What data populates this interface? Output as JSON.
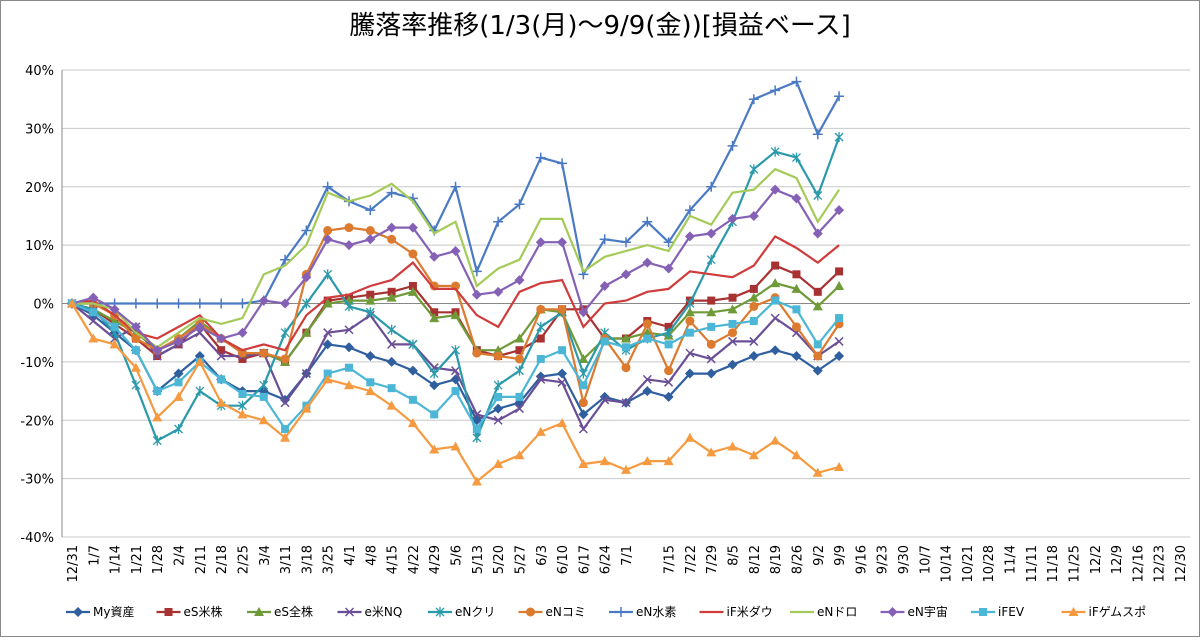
{
  "chart_data": {
    "type": "line",
    "title": "騰落率推移(1/3(月)～9/9(金))[損益ベース]",
    "categories": [
      "12/31",
      "1/7",
      "1/14",
      "1/21",
      "1/28",
      "2/4",
      "2/11",
      "2/18",
      "2/25",
      "3/4",
      "3/11",
      "3/18",
      "3/25",
      "4/1",
      "4/8",
      "4/15",
      "4/22",
      "4/29",
      "5/6",
      "5/13",
      "5/20",
      "5/27",
      "6/3",
      "6/10",
      "6/17",
      "6/24",
      "7/1",
      null,
      "7/15",
      "7/22",
      "7/29",
      "8/5",
      "8/12",
      "8/19",
      "8/26",
      "9/2",
      "9/9",
      "9/16",
      "9/23",
      "9/30",
      "10/7",
      "10/14",
      "10/21",
      "10/28",
      "11/4",
      "11/11",
      "11/18",
      "11/25",
      "12/2",
      "12/9",
      "12/16",
      "12/23",
      "12/30"
    ],
    "ylim": [
      -40,
      40
    ],
    "yticks": [
      {
        "value": -40,
        "label": "-40%"
      },
      {
        "value": -30,
        "label": "-30%"
      },
      {
        "value": -20,
        "label": "-20%"
      },
      {
        "value": -10,
        "label": "-10%"
      },
      {
        "value": 0,
        "label": "0%"
      },
      {
        "value": 10,
        "label": "10%"
      },
      {
        "value": 20,
        "label": "20%"
      },
      {
        "value": 30,
        "label": "30%"
      },
      {
        "value": 40,
        "label": "40%"
      }
    ],
    "grid": true,
    "legend": "bottom",
    "series": [
      {
        "name": "My資産",
        "color": "#2f5f9e",
        "marker": "diamond",
        "values": [
          0,
          -2,
          -5,
          -8,
          -15,
          -12,
          -9,
          -13,
          -15,
          -15,
          -16.5,
          -12,
          -7,
          -7.5,
          -9,
          -10,
          -11.5,
          -14,
          -13,
          -20,
          -18,
          -17,
          -12.5,
          -12,
          -19,
          -16,
          -17,
          -15,
          -16,
          -12,
          -12,
          -10.5,
          -9,
          -8,
          -9,
          -11.5,
          -9,
          null,
          null,
          null,
          null,
          null,
          null,
          null,
          null,
          null,
          null,
          null,
          null,
          null,
          null,
          null,
          null
        ]
      },
      {
        "name": "eS米株",
        "color": "#a83232",
        "marker": "square",
        "values": [
          0,
          -1,
          -3.5,
          -6,
          -9,
          -7,
          -3.5,
          -8,
          -9.5,
          -8.5,
          -10,
          -5,
          0.5,
          1,
          1.5,
          2,
          3,
          -1.5,
          -1.5,
          -8,
          -9,
          -8,
          -6,
          -1,
          -1,
          -6,
          -6,
          -3,
          -4,
          0.5,
          0.5,
          1,
          2.5,
          6.5,
          5,
          2,
          5.5,
          null,
          null,
          null,
          null,
          null,
          null,
          null,
          null,
          null,
          null,
          null,
          null,
          null,
          null,
          null,
          null
        ]
      },
      {
        "name": "eS全株",
        "color": "#6f9a38",
        "marker": "triangle",
        "values": [
          0,
          -1,
          -3,
          -5,
          -8,
          -6,
          -3,
          -6,
          -8.5,
          -8.5,
          -10,
          -5,
          0,
          0.5,
          0.5,
          1,
          2,
          -2.5,
          -2,
          -8,
          -8,
          -6,
          -1,
          -1.5,
          -9.5,
          -6,
          -6,
          -5,
          -5.5,
          -1.5,
          -1.5,
          -1,
          1,
          3.5,
          2.5,
          -0.5,
          3,
          null,
          null,
          null,
          null,
          null,
          null,
          null,
          null,
          null,
          null,
          null,
          null,
          null,
          null,
          null,
          null
        ]
      },
      {
        "name": "e米NQ",
        "color": "#6b4f96",
        "marker": "x",
        "values": [
          0,
          -3,
          -6,
          -4,
          -9,
          -7,
          -5,
          -9,
          -9,
          -8.5,
          -17,
          -12,
          -5,
          -4.5,
          -2,
          -7,
          -7,
          -11,
          -11.5,
          -19,
          -20,
          -18,
          -13,
          -13.5,
          -21.5,
          -16.5,
          -17,
          -13,
          -13.5,
          -8.5,
          -9.5,
          -6.5,
          -6.5,
          -2.5,
          -5,
          -9,
          -6.5,
          null,
          null,
          null,
          null,
          null,
          null,
          null,
          null,
          null,
          null,
          null,
          null,
          null,
          null,
          null,
          null
        ]
      },
      {
        "name": "eNクリ",
        "color": "#2a9aab",
        "marker": "star",
        "values": [
          0,
          -1,
          -5,
          -14,
          -23.5,
          -21.5,
          -15,
          -17.5,
          -17.5,
          -14,
          -5,
          0,
          5,
          -0.5,
          -1.5,
          -4.5,
          -7,
          -12,
          -8,
          -23,
          -14,
          -11.5,
          -4,
          -1.5,
          -12,
          -5,
          -8,
          -6,
          -5,
          0,
          7.5,
          14,
          23,
          26,
          25,
          18.5,
          28.5,
          null,
          null,
          null,
          null,
          null,
          null,
          null,
          null,
          null,
          null,
          null,
          null,
          null,
          null,
          null,
          null
        ]
      },
      {
        "name": "eNコミ",
        "color": "#dc7a30",
        "marker": "circle",
        "values": [
          0,
          0,
          -2,
          -6,
          -8,
          -6,
          -3.5,
          -6,
          -8.5,
          -8.5,
          -9.5,
          5,
          12.5,
          13,
          12.5,
          11,
          8.5,
          3,
          3,
          -8.5,
          -9,
          -9.5,
          -1,
          -1,
          -17,
          -6,
          -11,
          -3.5,
          -11.5,
          -3,
          -7,
          -5,
          -0.5,
          1,
          -4,
          -9,
          -3.5,
          null,
          null,
          null,
          null,
          null,
          null,
          null,
          null,
          null,
          null,
          null,
          null,
          null,
          null,
          null,
          null
        ]
      },
      {
        "name": "eN水素",
        "color": "#4a7ac4",
        "marker": "plus",
        "values": [
          0,
          0,
          0,
          0,
          0,
          0,
          0,
          0,
          0,
          0.5,
          7.5,
          12.5,
          20,
          17.5,
          16,
          19,
          18,
          12.5,
          20,
          5.5,
          14,
          17,
          25,
          24,
          5,
          11,
          10.5,
          14,
          10.5,
          16,
          20,
          27,
          35,
          36.5,
          38,
          29,
          35.5,
          null,
          null,
          null,
          null,
          null,
          null,
          null,
          null,
          null,
          null,
          null,
          null,
          null,
          null,
          null,
          null
        ]
      },
      {
        "name": "iF米ダウ",
        "color": "#d03c3c",
        "marker": "none",
        "values": [
          0,
          0.5,
          -2,
          -5,
          -6,
          -4,
          -2,
          -6,
          -8,
          -7,
          -8,
          -2,
          1,
          1.5,
          3,
          4,
          7,
          2.5,
          2.5,
          -2,
          -4,
          2,
          3.5,
          4,
          -4,
          0,
          0.5,
          2,
          2.5,
          5.5,
          5,
          4.5,
          6.5,
          11.5,
          9.5,
          7,
          10,
          null,
          null,
          null,
          null,
          null,
          null,
          null,
          null,
          null,
          null,
          null,
          null,
          null,
          null,
          null,
          null
        ]
      },
      {
        "name": "eNドロ",
        "color": "#a4ca58",
        "marker": "none",
        "values": [
          0,
          0,
          -1,
          -5,
          -7.5,
          -5,
          -2.5,
          -3.5,
          -2.5,
          5,
          6.5,
          10,
          19,
          17.5,
          18.5,
          20.5,
          17.5,
          12,
          14,
          3,
          6,
          7.5,
          14.5,
          14.5,
          5.5,
          8,
          9,
          10,
          9,
          15,
          13.5,
          19,
          19.5,
          23,
          21.5,
          14,
          19.5,
          null,
          null,
          null,
          null,
          null,
          null,
          null,
          null,
          null,
          null,
          null,
          null,
          null,
          null,
          null,
          null
        ]
      },
      {
        "name": "eN宇宙",
        "color": "#8561b6",
        "marker": "diamond",
        "values": [
          0,
          1,
          -1,
          -4,
          -8,
          -6.5,
          -4,
          -6,
          -5,
          0.5,
          0,
          4.5,
          11,
          10,
          11,
          13,
          13,
          8,
          9,
          1.5,
          2,
          4,
          10.5,
          10.5,
          -1.5,
          3,
          5,
          7,
          6,
          11.5,
          12,
          14.5,
          15,
          19.5,
          18,
          12,
          16,
          null,
          null,
          null,
          null,
          null,
          null,
          null,
          null,
          null,
          null,
          null,
          null,
          null,
          null,
          null,
          null
        ]
      },
      {
        "name": "iFEV",
        "color": "#4bb6d6",
        "marker": "square",
        "values": [
          0,
          -1.5,
          -4,
          -8,
          -15,
          -13.5,
          -10,
          -13,
          -15.5,
          -16,
          -21.5,
          -17.5,
          -12,
          -11,
          -13.5,
          -14.5,
          -16.5,
          -19,
          -15,
          -21.5,
          -16,
          -16,
          -9.5,
          -8,
          -14,
          -6.5,
          -7.5,
          -6,
          -7,
          -5,
          -4,
          -3.5,
          -3,
          0.5,
          -1,
          -7,
          -2.5,
          null,
          null,
          null,
          null,
          null,
          null,
          null,
          null,
          null,
          null,
          null,
          null,
          null,
          null,
          null,
          null
        ]
      },
      {
        "name": "iFゲムスポ",
        "color": "#f59a40",
        "marker": "triangle",
        "values": [
          0,
          -6,
          -7,
          -11,
          -19.5,
          -16,
          -10,
          -17,
          -19,
          -20,
          -23,
          -18,
          -13,
          -14,
          -15,
          -17.5,
          -20.5,
          -25,
          -24.5,
          -30.5,
          -27.5,
          -26,
          -22,
          -20.5,
          -27.5,
          -27,
          -28.5,
          -27,
          -27,
          -23,
          -25.5,
          -24.5,
          -26,
          -23.5,
          -26,
          -29,
          -28,
          null,
          null,
          null,
          null,
          null,
          null,
          null,
          null,
          null,
          null,
          null,
          null,
          null,
          null,
          null,
          null
        ]
      }
    ]
  }
}
